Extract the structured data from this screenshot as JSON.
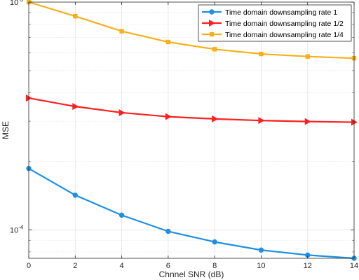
{
  "chart_data": {
    "type": "line",
    "xlabel": "Chnnel SNR (dB)",
    "ylabel": "MSE",
    "x": [
      0,
      2,
      4,
      6,
      8,
      10,
      12,
      14
    ],
    "xticks": [
      "0",
      "2",
      "4",
      "6",
      "8",
      "10",
      "12",
      "14"
    ],
    "xlim": [
      0,
      14
    ],
    "ylim": [
      7.5e-05,
      0.001
    ],
    "yscale": "log",
    "yticks": [
      {
        "value": 0.0001,
        "base": "10",
        "exp": "-4"
      },
      {
        "value": 0.001,
        "base": "10",
        "exp": "-3"
      }
    ],
    "grid": true,
    "legend_position": "top-right",
    "series": [
      {
        "name": "Time domain downsampling rate 1",
        "color": "#1f8fe5",
        "marker": "circle",
        "values": [
          0.000186,
          0.000142,
          0.000116,
          9.85e-05,
          8.85e-05,
          8.15e-05,
          7.75e-05,
          7.5e-05
        ]
      },
      {
        "name": "Time domain downsampling rate 1/2",
        "color": "#ff1f1f",
        "marker": "triangle-right",
        "values": [
          0.000379,
          0.000348,
          0.000327,
          0.000314,
          0.000307,
          0.000302,
          0.000299,
          0.000297
        ]
      },
      {
        "name": "Time domain downsampling rate 1/4",
        "color": "#f5b01a",
        "marker": "square",
        "values": [
          0.001,
          0.000867,
          0.000745,
          0.000668,
          0.000621,
          0.000592,
          0.000577,
          0.000567
        ]
      }
    ]
  }
}
